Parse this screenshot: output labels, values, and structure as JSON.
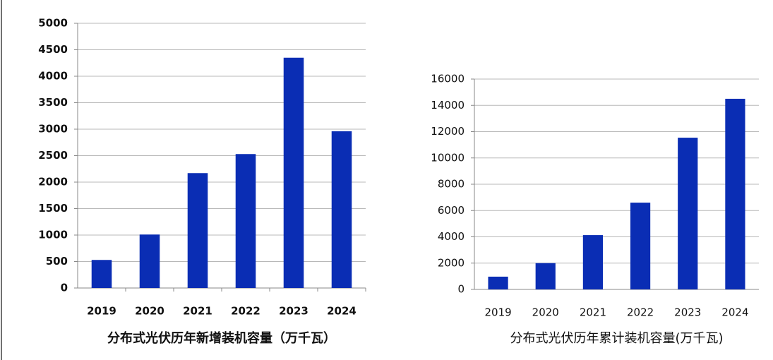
{
  "chart_data": [
    {
      "type": "bar",
      "title": "分布式光伏历年新增装机容量（万千瓦）",
      "categories": [
        "2019",
        "2020",
        "2021",
        "2022",
        "2023",
        "2024"
      ],
      "values": [
        530,
        1010,
        2170,
        2530,
        4350,
        2960
      ],
      "color": "#0a2db4",
      "ylim": [
        0,
        5000
      ],
      "yticks": [
        0,
        500,
        1000,
        1500,
        2000,
        2500,
        3000,
        3500,
        4000,
        4500,
        5000
      ],
      "grid": true
    },
    {
      "type": "bar",
      "title": "分布式光伏历年累计装机容量(万千瓦)",
      "categories": [
        "2019",
        "2020",
        "2021",
        "2022",
        "2023",
        "2024"
      ],
      "values": [
        970,
        2000,
        4130,
        6600,
        11540,
        14500
      ],
      "color": "#0a2db4",
      "ylim": [
        0,
        16000
      ],
      "yticks": [
        0,
        2000,
        4000,
        6000,
        8000,
        10000,
        12000,
        14000,
        16000
      ],
      "grid": true
    }
  ]
}
